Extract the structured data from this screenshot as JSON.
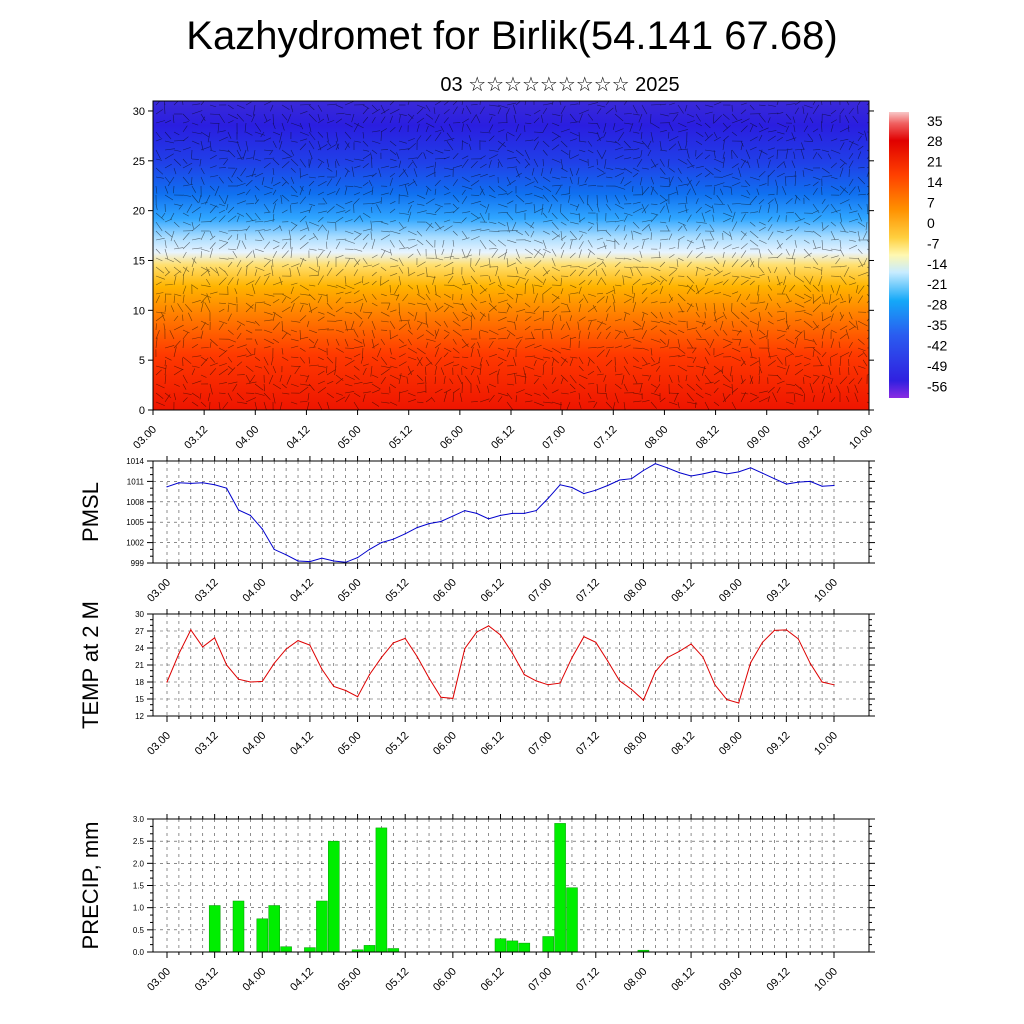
{
  "title": "Kazhydromet for Birlik(54.141 67.68)",
  "subtitle": "03 ☆☆☆☆☆☆☆☆☆ 2025",
  "time_ticks": [
    "03.00",
    "03.12",
    "04.00",
    "04.12",
    "05.00",
    "05.12",
    "06.00",
    "06.12",
    "07.00",
    "07.12",
    "08.00",
    "08.12",
    "09.00",
    "09.12",
    "10.00"
  ],
  "colors": {
    "pmsl_line": "#0000cc",
    "temp_line": "#dd0000",
    "precip_bar": "#00ee00",
    "precip_bar_edge": "#009900"
  },
  "chart_data": [
    {
      "type": "heatmap",
      "description_units": "temperature / wind cross-section",
      "x_ticks": [
        "03.00",
        "03.12",
        "04.00",
        "04.12",
        "05.00",
        "05.12",
        "06.00",
        "06.12",
        "07.00",
        "07.12",
        "08.00",
        "08.12",
        "09.00",
        "09.12",
        "10.00"
      ],
      "y_ticks": [
        0,
        5,
        10,
        15,
        20,
        25,
        30
      ],
      "ylim": [
        0,
        31
      ],
      "colorbar_labels": [
        35,
        28,
        21,
        14,
        7,
        0,
        -7,
        -14,
        -21,
        -28,
        -35,
        -42,
        -49,
        -56
      ],
      "colorbar_range": [
        -60,
        38
      ],
      "grid": false
    },
    {
      "type": "line",
      "ylabel": "PMSL",
      "ylim": [
        999,
        1014
      ],
      "y_ticks": [
        999,
        1002,
        1005,
        1008,
        1011,
        1014
      ],
      "x_ticks": [
        "03.00",
        "03.12",
        "04.00",
        "04.12",
        "05.00",
        "05.12",
        "06.00",
        "06.12",
        "07.00",
        "07.12",
        "08.00",
        "08.12",
        "09.00",
        "09.12",
        "10.00"
      ],
      "x_step_hours": 3,
      "values": [
        1010.2,
        1010.8,
        1010.7,
        1010.8,
        1010.5,
        1010.0,
        1006.8,
        1006.0,
        1004.0,
        1001.0,
        1000.2,
        999.3,
        999.2,
        999.7,
        999.3,
        999.1,
        999.8,
        1001.0,
        1002.0,
        1002.5,
        1003.3,
        1004.2,
        1004.8,
        1005.1,
        1005.9,
        1006.7,
        1006.3,
        1005.5,
        1006.0,
        1006.3,
        1006.3,
        1006.7,
        1008.5,
        1010.5,
        1010.1,
        1009.2,
        1009.7,
        1010.4,
        1011.2,
        1011.4,
        1012.6,
        1013.6,
        1013.0,
        1012.3,
        1011.8,
        1012.1,
        1012.5,
        1012.1,
        1012.4,
        1013.0,
        1012.2,
        1011.4,
        1010.6,
        1010.9,
        1011.0,
        1010.3,
        1010.4
      ],
      "grid": true
    },
    {
      "type": "line",
      "ylabel": "TEMP at 2 M",
      "ylim": [
        12,
        30
      ],
      "y_ticks": [
        12,
        15,
        18,
        21,
        24,
        27,
        30
      ],
      "x_ticks": [
        "03.00",
        "03.12",
        "04.00",
        "04.12",
        "05.00",
        "05.12",
        "06.00",
        "06.12",
        "07.00",
        "07.12",
        "08.00",
        "08.12",
        "09.00",
        "09.12",
        "10.00"
      ],
      "x_step_hours": 3,
      "values": [
        18.0,
        23.0,
        27.2,
        24.2,
        25.8,
        21.0,
        18.5,
        18.0,
        18.1,
        21.3,
        23.8,
        25.3,
        24.5,
        20.3,
        17.2,
        16.5,
        15.4,
        19.3,
        22.3,
        24.9,
        25.7,
        22.5,
        18.7,
        15.3,
        15.1,
        23.9,
        26.8,
        27.9,
        26.3,
        23.1,
        19.3,
        18.2,
        17.5,
        17.8,
        22.3,
        26.0,
        25.0,
        21.7,
        18.2,
        16.7,
        14.8,
        19.8,
        22.3,
        23.4,
        24.7,
        22.4,
        17.5,
        14.9,
        14.3,
        21.4,
        25.0,
        27.1,
        27.2,
        25.6,
        21.3,
        18.0,
        17.5
      ],
      "grid": true
    },
    {
      "type": "bar",
      "ylabel": "PRECIP, mm",
      "ylim": [
        0,
        3.0
      ],
      "y_ticks": [
        0.0,
        0.5,
        1.0,
        1.5,
        2.0,
        2.5,
        3.0
      ],
      "x_ticks": [
        "03.00",
        "03.12",
        "04.00",
        "04.12",
        "05.00",
        "05.12",
        "06.00",
        "06.12",
        "07.00",
        "07.12",
        "08.00",
        "08.12",
        "09.00",
        "09.12",
        "10.00"
      ],
      "x_step_hours": 3,
      "values": [
        0,
        0,
        0,
        1.05,
        0,
        1.15,
        0,
        0.75,
        1.05,
        0.12,
        0,
        0.1,
        1.15,
        2.5,
        0,
        0.05,
        0.15,
        2.8,
        0.08,
        0,
        0,
        0,
        0,
        0,
        0,
        0,
        0,
        0.3,
        0.25,
        0.2,
        0,
        0.35,
        2.9,
        1.45,
        0,
        0,
        0,
        0,
        0,
        0.04,
        0,
        0,
        0,
        0,
        0,
        0,
        0,
        0,
        0,
        0,
        0,
        0,
        0,
        0,
        0,
        0,
        0
      ],
      "grid": true
    }
  ]
}
